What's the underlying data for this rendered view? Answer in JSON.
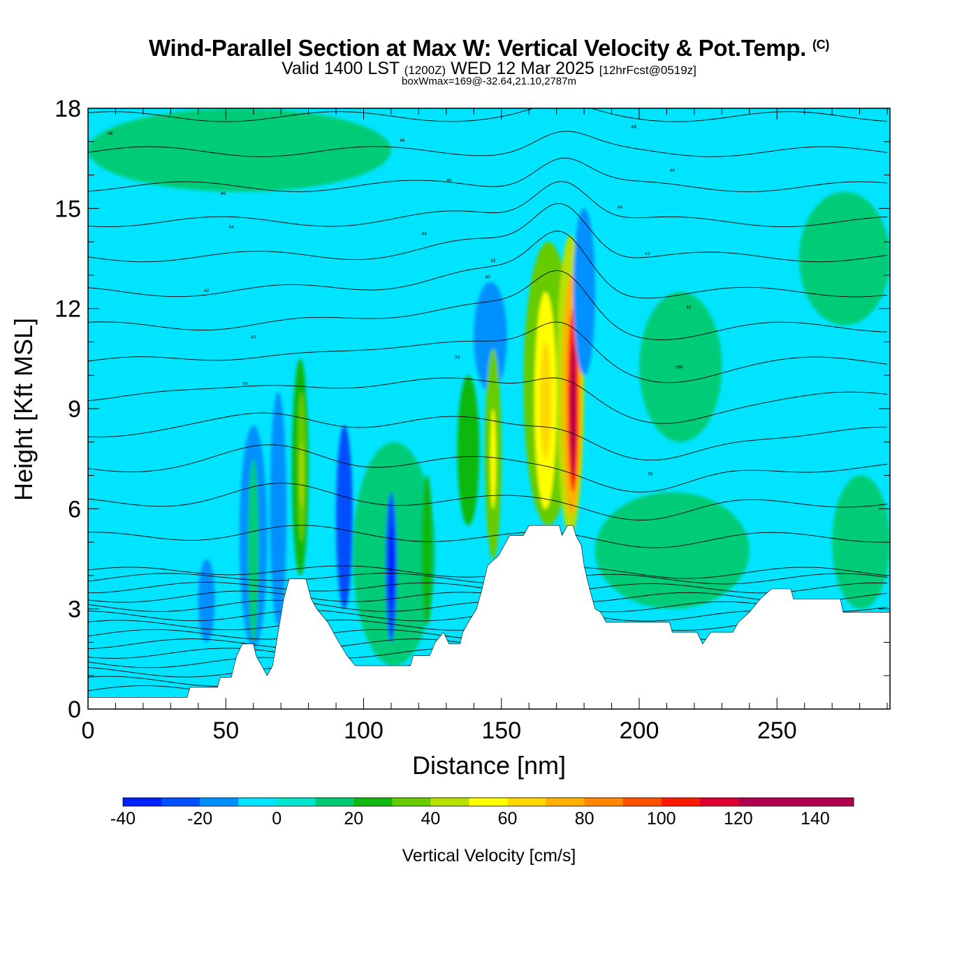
{
  "title": {
    "main": "Wind-Parallel Section at Max W: Vertical Velocity & Pot.Temp.",
    "copyright": "(C)",
    "valid_prefix": "Valid 1400 LST",
    "valid_utc": "(1200Z)",
    "valid_date": "WED 12 Mar 2025",
    "forecast": "[12hrFcst@0519z]",
    "box_info": "boxWmax=169@-32.64,21.10,2787m"
  },
  "colors": {
    "background_field": "#00e4ff",
    "terrain": "#ffffff",
    "contour": "#000000"
  },
  "chart_data": {
    "type": "heatmap",
    "xlabel": "Distance [nm]",
    "ylabel": "Height [Kft MSL]",
    "xlim": [
      0,
      291
    ],
    "ylim": [
      0,
      18
    ],
    "x_ticks": [
      0,
      50,
      100,
      150,
      200,
      250
    ],
    "y_ticks": [
      0,
      3,
      6,
      9,
      12,
      15,
      18
    ],
    "colorbar": {
      "label": "Vertical Velocity [cm/s]",
      "tick_labels": [
        "-40",
        "-20",
        "0",
        "20",
        "40",
        "60",
        "80",
        "100",
        "120",
        "140"
      ],
      "bounds": [
        -40,
        150
      ],
      "step": 10,
      "colors": [
        "#0020ff",
        "#0050ff",
        "#0090ff",
        "#00e4ff",
        "#00e6cc",
        "#00cc77",
        "#11b811",
        "#66cc00",
        "#b8e000",
        "#ffff00",
        "#ffd800",
        "#ffb000",
        "#ff8800",
        "#ff5000",
        "#ff1a00",
        "#e00030",
        "#b00050",
        "#b00050",
        "#b00050"
      ]
    },
    "terrain_kft": [
      [
        0,
        0.35
      ],
      [
        36,
        0.35
      ],
      [
        37,
        0.65
      ],
      [
        47,
        0.65
      ],
      [
        48,
        0.95
      ],
      [
        52,
        0.95
      ],
      [
        53,
        1.3
      ],
      [
        54,
        1.6
      ],
      [
        56,
        1.95
      ],
      [
        60,
        1.95
      ],
      [
        61,
        1.6
      ],
      [
        63,
        1.3
      ],
      [
        65,
        1.0
      ],
      [
        67,
        1.3
      ],
      [
        69,
        2.3
      ],
      [
        71,
        3.3
      ],
      [
        73,
        3.9
      ],
      [
        79,
        3.9
      ],
      [
        81,
        3.3
      ],
      [
        83,
        3.0
      ],
      [
        87,
        2.6
      ],
      [
        89,
        2.3
      ],
      [
        91,
        2.0
      ],
      [
        94,
        1.6
      ],
      [
        97,
        1.3
      ],
      [
        117,
        1.3
      ],
      [
        118,
        1.6
      ],
      [
        124,
        1.6
      ],
      [
        126,
        2.0
      ],
      [
        129,
        2.3
      ],
      [
        131,
        1.95
      ],
      [
        135,
        1.95
      ],
      [
        136,
        2.3
      ],
      [
        138,
        2.6
      ],
      [
        141,
        3.0
      ],
      [
        143,
        3.6
      ],
      [
        145,
        4.3
      ],
      [
        149,
        4.6
      ],
      [
        151,
        4.9
      ],
      [
        153,
        5.2
      ],
      [
        158,
        5.2
      ],
      [
        160,
        5.5
      ],
      [
        171,
        5.5
      ],
      [
        172,
        5.2
      ],
      [
        174,
        5.5
      ],
      [
        176,
        5.5
      ],
      [
        177,
        5.2
      ],
      [
        179,
        4.9
      ],
      [
        180,
        4.3
      ],
      [
        182,
        3.6
      ],
      [
        184,
        3.0
      ],
      [
        186,
        2.9
      ],
      [
        188,
        2.6
      ],
      [
        211,
        2.6
      ],
      [
        212,
        2.3
      ],
      [
        221,
        2.3
      ],
      [
        223,
        1.95
      ],
      [
        226,
        2.3
      ],
      [
        234,
        2.3
      ],
      [
        236,
        2.6
      ],
      [
        240,
        2.9
      ],
      [
        244,
        3.3
      ],
      [
        248,
        3.6
      ],
      [
        255,
        3.6
      ],
      [
        256,
        3.3
      ],
      [
        273,
        3.3
      ],
      [
        274,
        2.9
      ],
      [
        291,
        2.9
      ]
    ],
    "w_cells_cm_s": [
      {
        "x": [
          55,
          65
        ],
        "z": [
          1.8,
          8.5
        ],
        "w": -15,
        "shape": "ellipse"
      },
      {
        "x": [
          58,
          62
        ],
        "z": [
          2.0,
          7.5
        ],
        "w": 10
      },
      {
        "x": [
          66,
          72
        ],
        "z": [
          2.5,
          9.5
        ],
        "w": -15
      },
      {
        "x": [
          74,
          80
        ],
        "z": [
          4.0,
          10.5
        ],
        "w": 20
      },
      {
        "x": [
          76,
          79
        ],
        "z": [
          5.0,
          9.5
        ],
        "w": 30
      },
      {
        "x": [
          77,
          78
        ],
        "z": [
          6.0,
          8.0
        ],
        "w": 40
      },
      {
        "x": [
          80,
          92
        ],
        "z": [
          8.5,
          10.5
        ],
        "w": -10
      },
      {
        "x": [
          90,
          96
        ],
        "z": [
          3.0,
          8.5
        ],
        "w": -25
      },
      {
        "x": [
          96,
          126
        ],
        "z": [
          1.3,
          8.0
        ],
        "w": 10
      },
      {
        "x": [
          108,
          112
        ],
        "z": [
          2.0,
          6.5
        ],
        "w": -25
      },
      {
        "x": [
          109,
          111
        ],
        "z": [
          3.0,
          5.5
        ],
        "w": -35
      },
      {
        "x": [
          121,
          125
        ],
        "z": [
          2.5,
          7.0
        ],
        "w": 20
      },
      {
        "x": [
          134,
          142
        ],
        "z": [
          5.5,
          10.0
        ],
        "w": 20
      },
      {
        "x": [
          140,
          152
        ],
        "z": [
          9.5,
          12.8
        ],
        "w": -20
      },
      {
        "x": [
          144,
          150
        ],
        "z": [
          4.5,
          10.8
        ],
        "w": 30
      },
      {
        "x": [
          146,
          148
        ],
        "z": [
          6.0,
          9.0
        ],
        "w": 50
      },
      {
        "x": [
          158,
          176
        ],
        "z": [
          5.5,
          14.0
        ],
        "w": 30
      },
      {
        "x": [
          162,
          170
        ],
        "z": [
          6.0,
          12.5
        ],
        "w": 50
      },
      {
        "x": [
          164,
          168
        ],
        "z": [
          7.5,
          11.0
        ],
        "w": 60
      },
      {
        "x": [
          170,
          180
        ],
        "z": [
          5.2,
          14.2
        ],
        "w": 40
      },
      {
        "x": [
          172,
          179
        ],
        "z": [
          5.8,
          13.0
        ],
        "w": 70
      },
      {
        "x": [
          174,
          178
        ],
        "z": [
          6.5,
          12.0
        ],
        "w": 100
      },
      {
        "x": [
          175,
          177
        ],
        "z": [
          7.0,
          11.0
        ],
        "w": 140
      },
      {
        "x": [
          176,
          184
        ],
        "z": [
          10.0,
          15.0
        ],
        "w": -20
      },
      {
        "x": [
          40,
          46
        ],
        "z": [
          2.0,
          4.5
        ],
        "w": -15
      },
      {
        "x": [
          184,
          240
        ],
        "z": [
          3.0,
          6.5
        ],
        "w": 10
      },
      {
        "x": [
          200,
          230
        ],
        "z": [
          8.0,
          12.5
        ],
        "w": 10
      },
      {
        "x": [
          258,
          291
        ],
        "z": [
          11.5,
          15.5
        ],
        "w": 10
      },
      {
        "x": [
          270,
          291
        ],
        "z": [
          3.0,
          7.0
        ],
        "w": 10
      },
      {
        "x": [
          0,
          110
        ],
        "z": [
          15.5,
          18.0
        ],
        "w": 10
      }
    ],
    "theta_contour_labels": [
      "48",
      "48",
      "46",
      "46",
      "46",
      "46",
      "44",
      "44",
      "44",
      "42",
      "42",
      "42",
      "42",
      "40",
      "40",
      "38",
      "38",
      "36",
      "36",
      "36"
    ]
  }
}
